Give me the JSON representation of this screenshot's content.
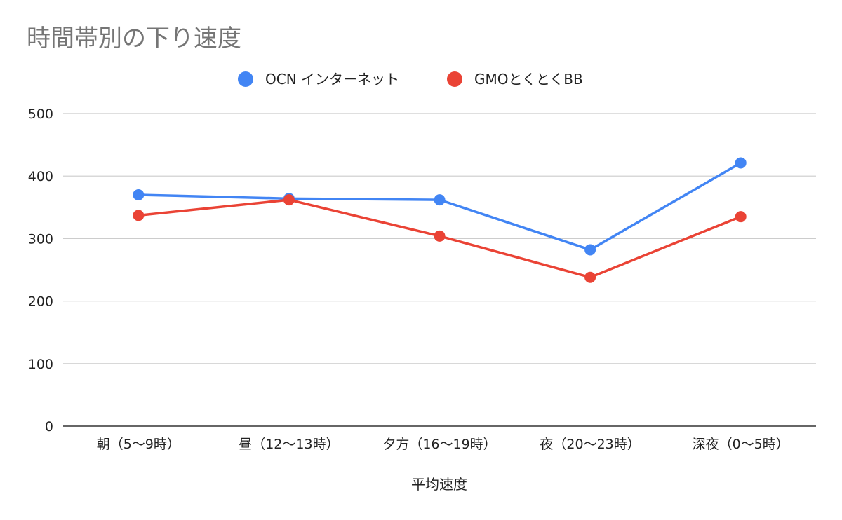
{
  "chart_data": {
    "type": "line",
    "title": "時間帯別の下り速度",
    "xlabel": "平均速度",
    "ylabel": "",
    "categories": [
      "朝（5〜9時）",
      "昼（12〜13時）",
      "夕方（16〜19時）",
      "夜（20〜23時）",
      "深夜（0〜5時）"
    ],
    "series": [
      {
        "name": "OCN インターネット",
        "color": "#4285f4",
        "values": [
          370,
          364,
          362,
          282,
          421
        ]
      },
      {
        "name": "GMOとくとくBB",
        "color": "#ea4335",
        "values": [
          337,
          362,
          304,
          238,
          335
        ]
      }
    ],
    "ylim": [
      0,
      500
    ],
    "yticks": [
      0,
      100,
      200,
      300,
      400,
      500
    ],
    "grid": true,
    "legend_position": "top-center"
  }
}
